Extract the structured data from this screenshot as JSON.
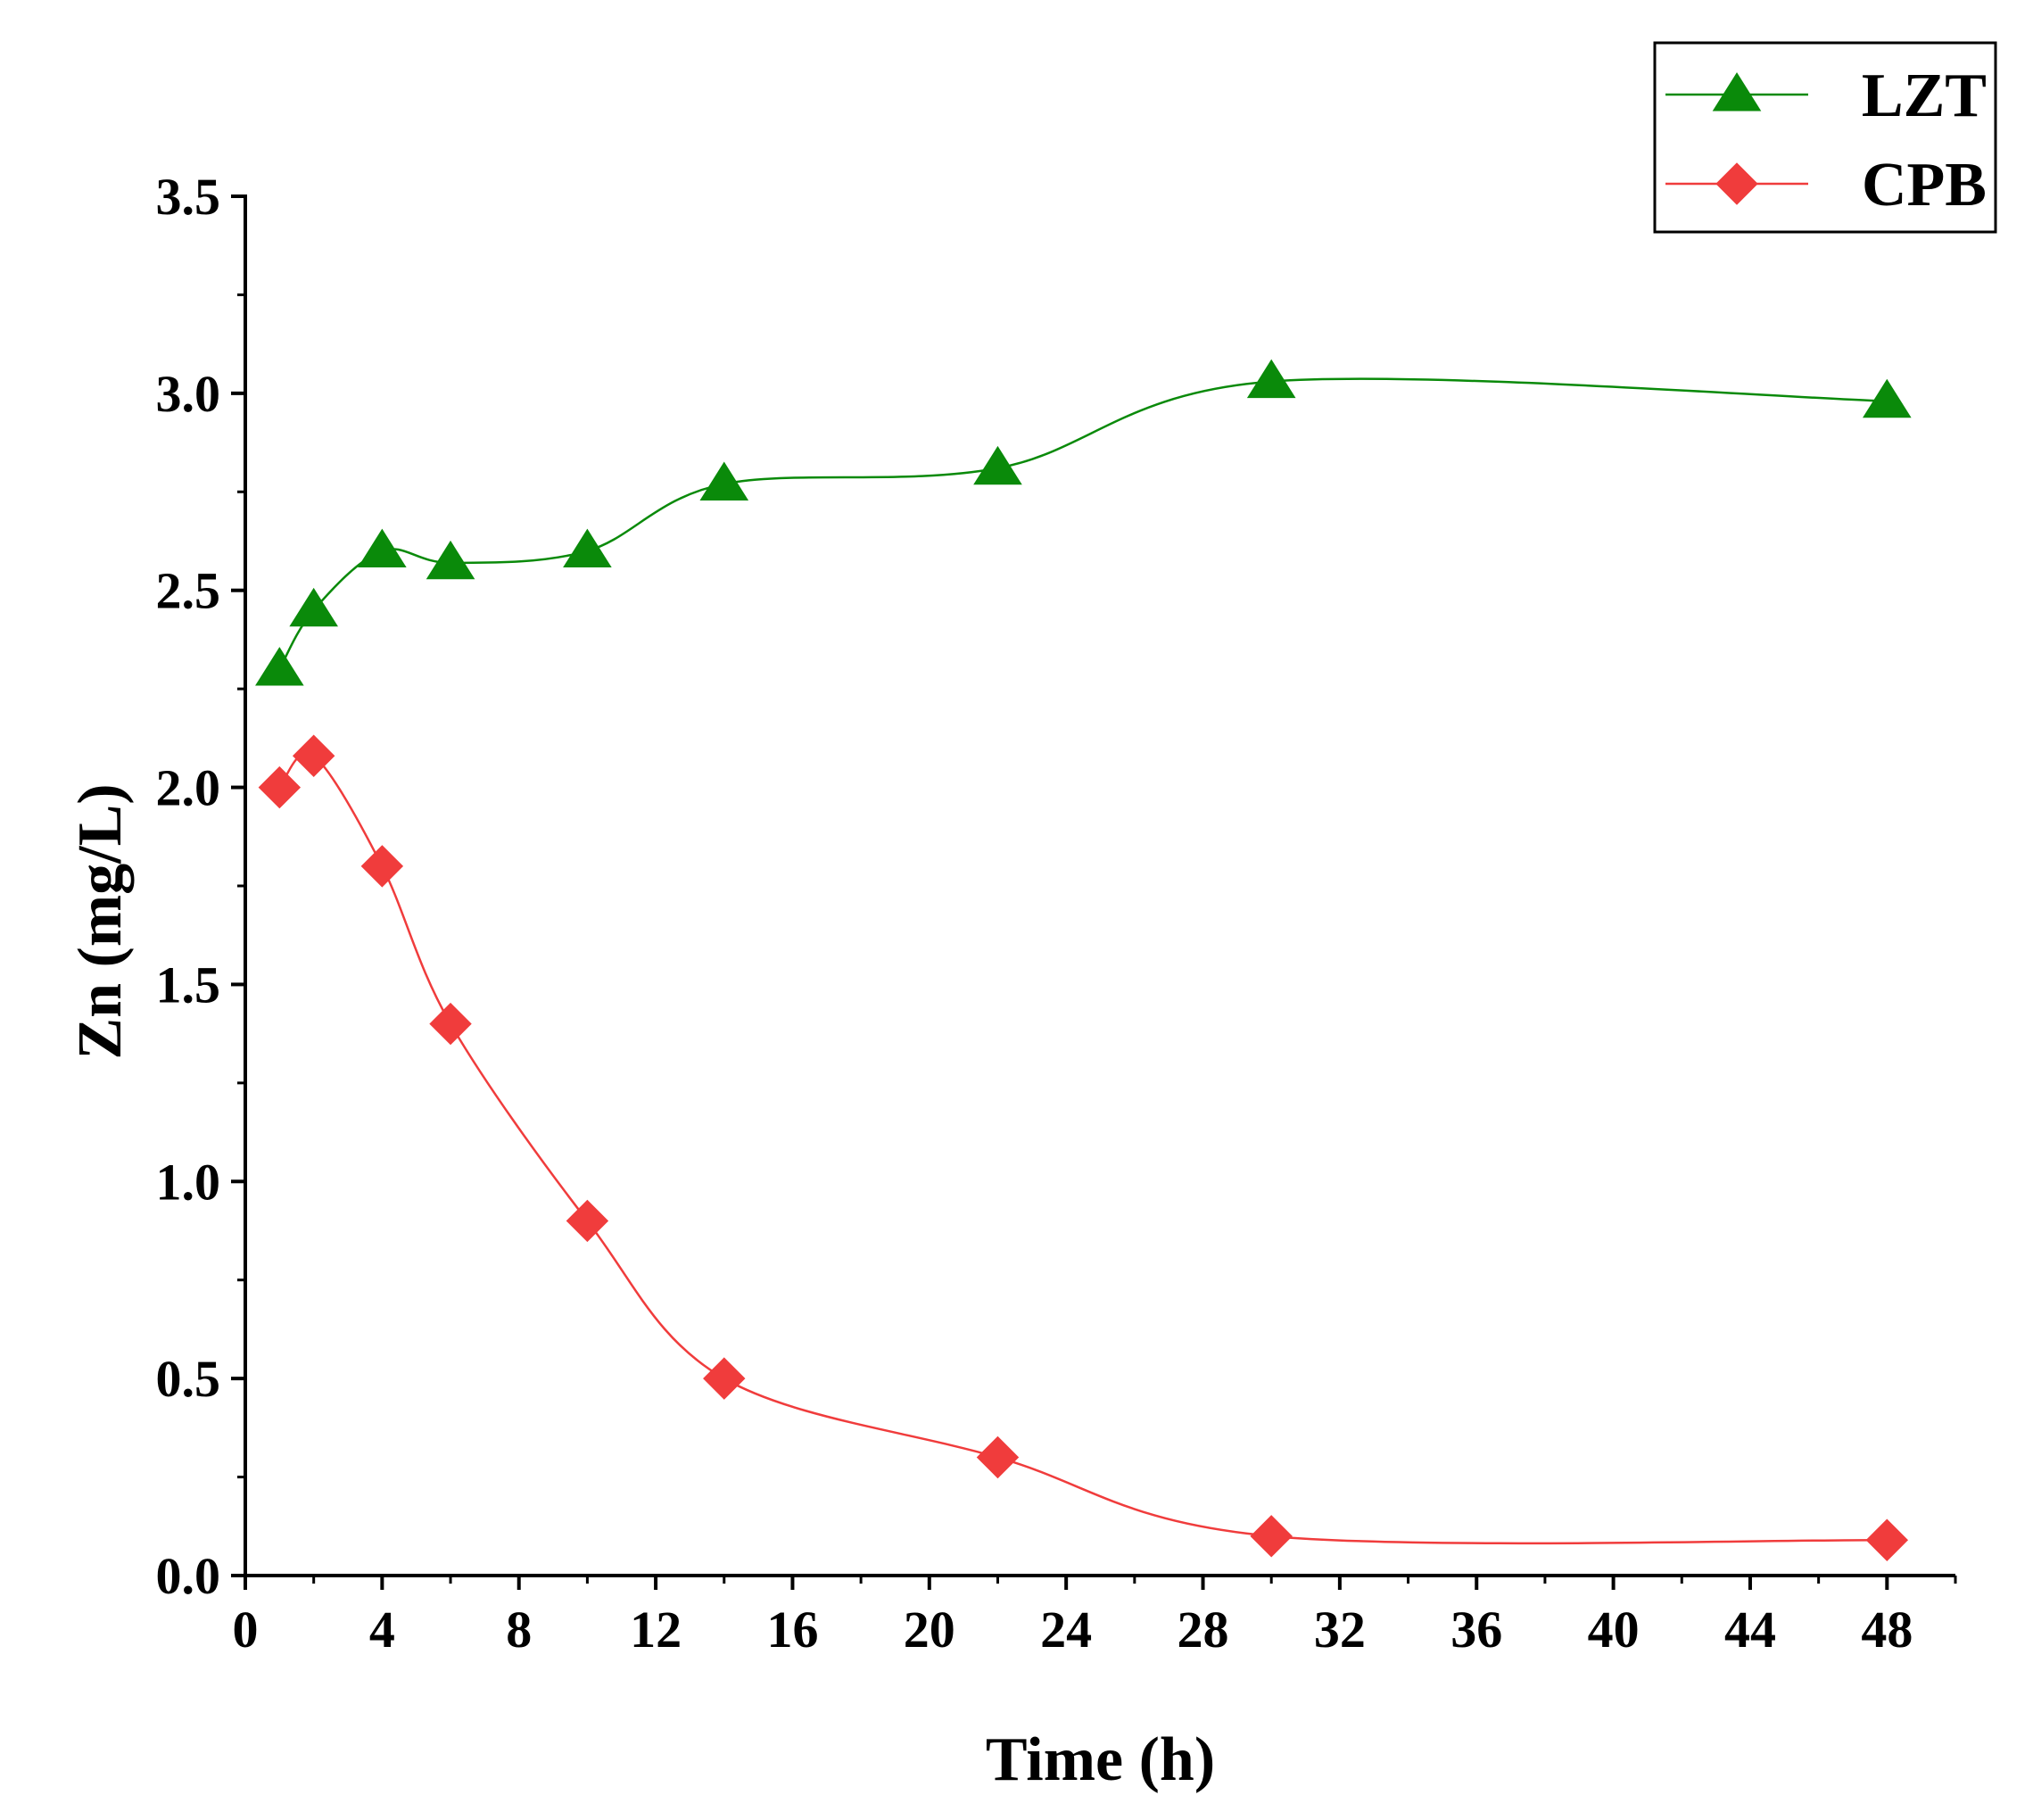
{
  "chart_data": {
    "type": "line",
    "title": "",
    "xlabel": "Time (h)",
    "ylabel": "Zn (mg/L)",
    "xlim": [
      0,
      50
    ],
    "ylim": [
      0,
      3.5
    ],
    "xticks": [
      0,
      4,
      8,
      12,
      16,
      20,
      24,
      28,
      32,
      36,
      40,
      44,
      48
    ],
    "xtick_labels": [
      "0",
      "4",
      "8",
      "12",
      "16",
      "20",
      "24",
      "28",
      "32",
      "36",
      "40",
      "44",
      "48"
    ],
    "yticks": [
      0,
      0.5,
      1.0,
      1.5,
      2.0,
      2.5,
      3.0,
      3.5
    ],
    "ytick_labels": [
      "0.0",
      "0.5",
      "1.0",
      "1.5",
      "2.0",
      "2.5",
      "3.0",
      "3.5"
    ],
    "grid": false,
    "legend_position": "top-right",
    "series": [
      {
        "name": "LZT",
        "color": "#0a8a0a",
        "marker": "triangle",
        "x": [
          1,
          2,
          4,
          6,
          10,
          14,
          22,
          30,
          48
        ],
        "values": [
          2.3,
          2.45,
          2.6,
          2.57,
          2.6,
          2.77,
          2.81,
          3.03,
          2.98
        ]
      },
      {
        "name": "CPB",
        "color": "#f03c3c",
        "marker": "diamond",
        "x": [
          1,
          2,
          4,
          6,
          10,
          14,
          22,
          30,
          48
        ],
        "values": [
          2.0,
          2.08,
          1.8,
          1.4,
          0.9,
          0.5,
          0.3,
          0.1,
          0.09
        ]
      }
    ]
  }
}
